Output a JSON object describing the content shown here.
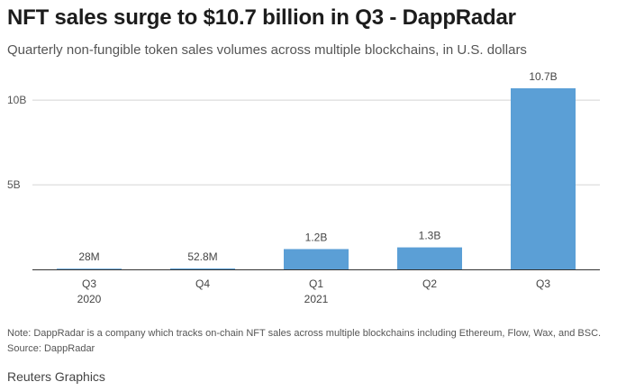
{
  "header": {
    "title": "NFT sales surge to $10.7 billion in Q3 - DappRadar",
    "subtitle": "Quarterly non-fungible token sales volumes across multiple blockchains, in U.S. dollars"
  },
  "chart_data": {
    "type": "bar",
    "categories": [
      "Q3",
      "Q4",
      "Q1",
      "Q2",
      "Q3"
    ],
    "category_years": [
      "2020",
      "",
      "2021",
      "",
      ""
    ],
    "values": [
      28000000,
      52800000,
      1200000000,
      1300000000,
      10700000000
    ],
    "data_labels": [
      "28M",
      "52.8M",
      "1.2B",
      "1.3B",
      "10.7B"
    ],
    "y_ticks": [
      {
        "value": 5000000000,
        "label": "5B"
      },
      {
        "value": 10000000000,
        "label": "10B"
      }
    ],
    "ylim": [
      0,
      10700000000
    ],
    "grid": true,
    "legend": "none",
    "bar_color": "#5b9fd6"
  },
  "note": {
    "text": "Note: DappRadar is a company which tracks on-chain NFT sales across multiple blockchains including Ethereum, Flow, Wax, and BSC.",
    "source": "Source: DappRadar"
  },
  "footer": {
    "credit": "Reuters Graphics"
  }
}
